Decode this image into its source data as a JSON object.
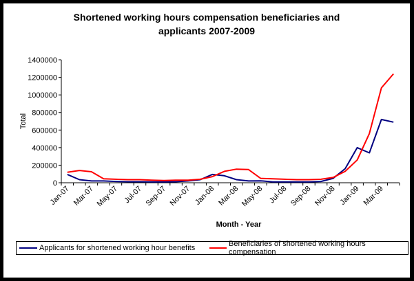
{
  "colors": {
    "applicants": "#000080",
    "beneficiaries": "#ff0000",
    "background": "#000000"
  },
  "chart_data": {
    "type": "line",
    "title_line1": "Shortened working hours compensation beneficiaries and",
    "title_line2": "applicants 2007-2009",
    "xlabel": "Month - Year",
    "ylabel": "Total",
    "ylim": [
      0,
      1400000
    ],
    "yticks": [
      0,
      200000,
      400000,
      600000,
      800000,
      1000000,
      1200000,
      1400000
    ],
    "ytick_labels": [
      "0",
      "200000",
      "400000",
      "600000",
      "800000",
      "1000000",
      "1200000",
      "1400000"
    ],
    "grid": false,
    "legend_position": "bottom",
    "categories": [
      "Jan-07",
      "Feb-07",
      "Mar-07",
      "Apr-07",
      "May-07",
      "Jun-07",
      "Jul-07",
      "Aug-07",
      "Sep-07",
      "Oct-07",
      "Nov-07",
      "Dec-07",
      "Jan-08",
      "Feb-08",
      "Mar-08",
      "Apr-08",
      "May-08",
      "Jun-08",
      "Jul-08",
      "Aug-08",
      "Sep-08",
      "Oct-08",
      "Nov-08",
      "Dec-08",
      "Jan-09",
      "Feb-09",
      "Mar-09",
      "Apr-09"
    ],
    "xtick_labels": [
      "Jan-07",
      "Mar-07",
      "May-07",
      "Jul-07",
      "Sep-07",
      "Nov-07",
      "Jan-08",
      "Mar-08",
      "May-08",
      "Jul-08",
      "Sep-08",
      "Nov-08",
      "Jan-09",
      "Mar-09"
    ],
    "series": [
      {
        "name": "Applicants for shortened working hour benefits",
        "color": "#000080",
        "values": [
          95000,
          35000,
          20000,
          20000,
          15000,
          12000,
          12000,
          10000,
          10000,
          12000,
          20000,
          35000,
          95000,
          80000,
          35000,
          20000,
          22000,
          10000,
          10000,
          10000,
          10000,
          15000,
          50000,
          160000,
          400000,
          340000,
          720000,
          690000
        ]
      },
      {
        "name": "Beneficiaries of shortened working hours compensation",
        "color": "#ff0000",
        "values": [
          120000,
          140000,
          125000,
          45000,
          40000,
          35000,
          35000,
          30000,
          25000,
          30000,
          30000,
          40000,
          70000,
          130000,
          155000,
          150000,
          50000,
          45000,
          40000,
          35000,
          35000,
          40000,
          60000,
          130000,
          260000,
          560000,
          1080000,
          1240000
        ]
      }
    ]
  }
}
